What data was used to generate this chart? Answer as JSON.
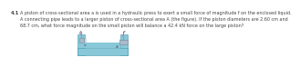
{
  "problem_number": "4.1",
  "text_line1": "A piston of cross-sectional area a is used in a hydraulic press to exert a small force of magnitude f on the enclosed liquid.",
  "text_line2": "A connecting pipe leads to a larger piston of cross-sectional area A (the figure). If the piston diameters are 2.60 cm and",
  "text_line3": "68.7 cm, what force magnitude on the small piston will balance a 42.4 kN force on the large piston?",
  "bg_color": "#ffffff",
  "text_color": "#444444",
  "text_fontsize": 3.5,
  "number_fontsize": 3.8,
  "tank_fill": "#88c8d8",
  "tank_edge": "#4499aa",
  "piston_fill": "#aabbcc",
  "piston_edge": "#778899",
  "rod_color": "#9999bb",
  "wall_fill": "#ccdddd",
  "wall_edge": "#99aaaa",
  "label_color": "#555566",
  "label_f": "f",
  "label_F": "F",
  "label_a": "a",
  "label_A": "A"
}
